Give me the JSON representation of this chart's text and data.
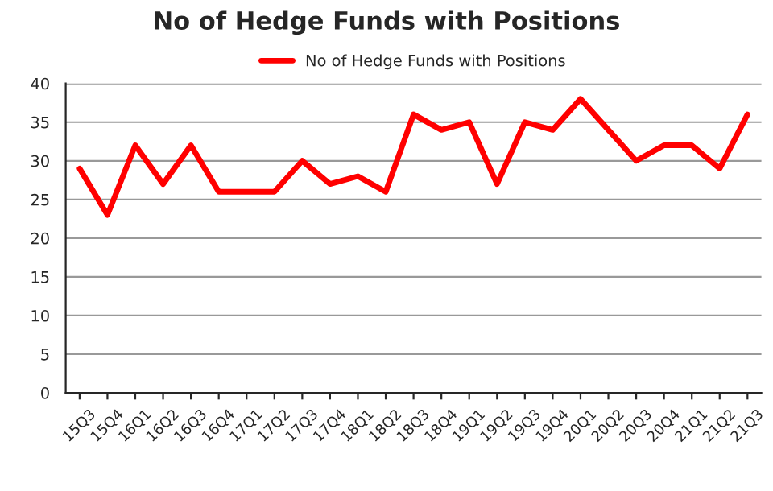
{
  "chart_data": {
    "type": "line",
    "title": "No of Hedge Funds with Positions",
    "categories": [
      "15Q3",
      "15Q4",
      "16Q1",
      "16Q2",
      "16Q3",
      "16Q4",
      "17Q1",
      "17Q2",
      "17Q3",
      "17Q4",
      "18Q1",
      "18Q2",
      "18Q3",
      "18Q4",
      "19Q1",
      "19Q2",
      "19Q3",
      "19Q4",
      "20Q1",
      "20Q2",
      "20Q3",
      "20Q4",
      "21Q1",
      "21Q2",
      "21Q3"
    ],
    "series": [
      {
        "name": "No of Hedge Funds with Positions",
        "color": "#ff0000",
        "values": [
          29,
          23,
          32,
          27,
          32,
          26,
          26,
          26,
          30,
          27,
          28,
          26,
          36,
          34,
          35,
          27,
          35,
          34,
          38,
          34,
          30,
          32,
          32,
          29,
          36
        ]
      }
    ],
    "ylim": [
      0,
      40
    ],
    "yticks": [
      0,
      5,
      10,
      15,
      20,
      25,
      30,
      35,
      40
    ],
    "grid": "y",
    "legend": "top",
    "marker": "none",
    "line_style": "solid"
  }
}
